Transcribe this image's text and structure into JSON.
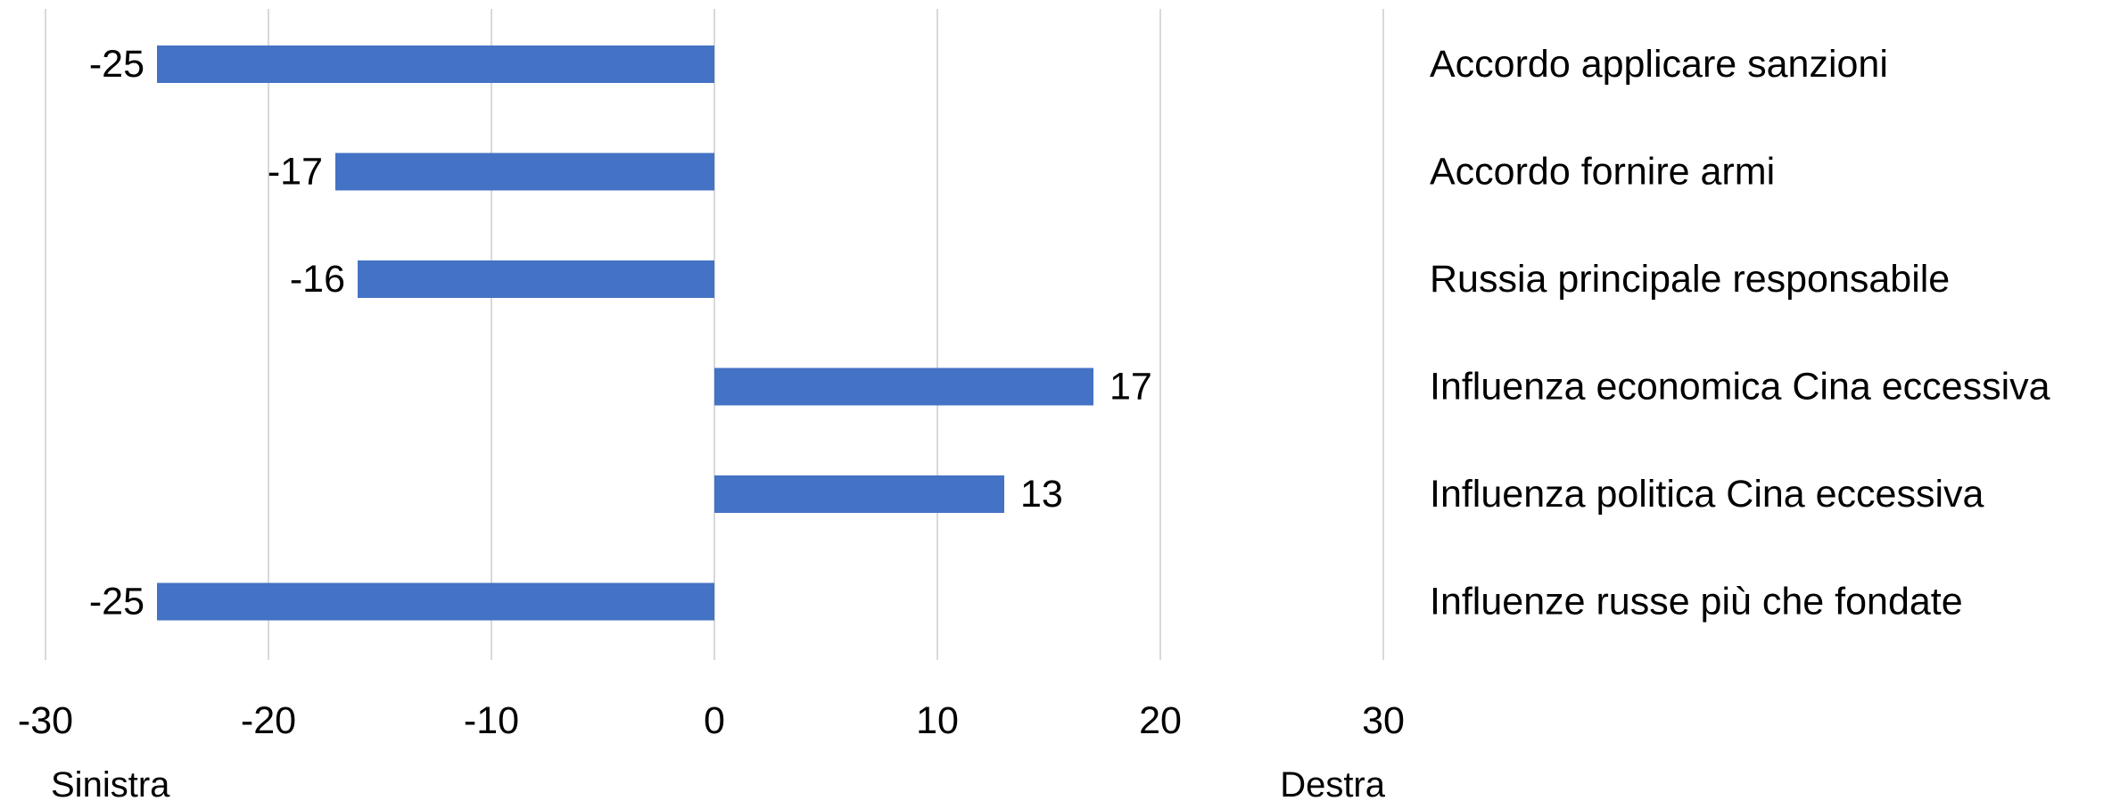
{
  "chart_data": {
    "type": "bar",
    "orientation": "horizontal",
    "categories": [
      "Accordo applicare sanzioni",
      "Accordo fornire armi",
      "Russia principale responsabile",
      "Influenza economica Cina eccessiva",
      "Influenza politica Cina eccessiva",
      "Influenze russe più che fondate"
    ],
    "values": [
      -25,
      -17,
      -16,
      17,
      13,
      -25
    ],
    "data_labels": [
      "-25",
      "-17",
      "-16",
      "17",
      "13",
      "-25"
    ],
    "xlim": [
      -30,
      30
    ],
    "xticks": [
      -30,
      -20,
      -10,
      0,
      10,
      20,
      30
    ],
    "xtick_labels": [
      "-30",
      "-20",
      "-10",
      "0",
      "10",
      "20",
      "30"
    ],
    "axis_end_labels": {
      "left": "Sinistra",
      "right": "Destra"
    },
    "bar_color": "#4472C4",
    "gridlines": "vertical",
    "gridline_color": "#D9D9D9",
    "category_labels_position": "right",
    "title": "",
    "xlabel": "",
    "ylabel": ""
  }
}
